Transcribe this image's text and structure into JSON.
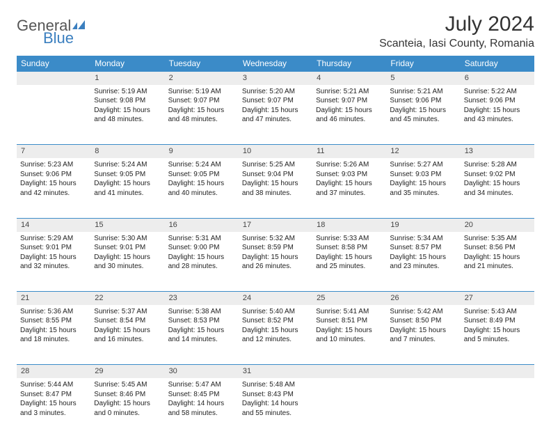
{
  "logo": {
    "part1": "General",
    "part2": "Blue"
  },
  "title": "July 2024",
  "location": "Scanteia, Iasi County, Romania",
  "colors": {
    "header_bg": "#3b8bc8",
    "header_text": "#ffffff",
    "daynum_bg": "#ededed",
    "border": "#3b8bc8",
    "logo_gray": "#555555",
    "logo_blue": "#3b7fbf"
  },
  "daysOfWeek": [
    "Sunday",
    "Monday",
    "Tuesday",
    "Wednesday",
    "Thursday",
    "Friday",
    "Saturday"
  ],
  "weeks": [
    {
      "nums": [
        "",
        "1",
        "2",
        "3",
        "4",
        "5",
        "6"
      ],
      "cells": [
        null,
        {
          "sunrise": "Sunrise: 5:19 AM",
          "sunset": "Sunset: 9:08 PM",
          "d1": "Daylight: 15 hours",
          "d2": "and 48 minutes."
        },
        {
          "sunrise": "Sunrise: 5:19 AM",
          "sunset": "Sunset: 9:07 PM",
          "d1": "Daylight: 15 hours",
          "d2": "and 48 minutes."
        },
        {
          "sunrise": "Sunrise: 5:20 AM",
          "sunset": "Sunset: 9:07 PM",
          "d1": "Daylight: 15 hours",
          "d2": "and 47 minutes."
        },
        {
          "sunrise": "Sunrise: 5:21 AM",
          "sunset": "Sunset: 9:07 PM",
          "d1": "Daylight: 15 hours",
          "d2": "and 46 minutes."
        },
        {
          "sunrise": "Sunrise: 5:21 AM",
          "sunset": "Sunset: 9:06 PM",
          "d1": "Daylight: 15 hours",
          "d2": "and 45 minutes."
        },
        {
          "sunrise": "Sunrise: 5:22 AM",
          "sunset": "Sunset: 9:06 PM",
          "d1": "Daylight: 15 hours",
          "d2": "and 43 minutes."
        }
      ]
    },
    {
      "nums": [
        "7",
        "8",
        "9",
        "10",
        "11",
        "12",
        "13"
      ],
      "cells": [
        {
          "sunrise": "Sunrise: 5:23 AM",
          "sunset": "Sunset: 9:06 PM",
          "d1": "Daylight: 15 hours",
          "d2": "and 42 minutes."
        },
        {
          "sunrise": "Sunrise: 5:24 AM",
          "sunset": "Sunset: 9:05 PM",
          "d1": "Daylight: 15 hours",
          "d2": "and 41 minutes."
        },
        {
          "sunrise": "Sunrise: 5:24 AM",
          "sunset": "Sunset: 9:05 PM",
          "d1": "Daylight: 15 hours",
          "d2": "and 40 minutes."
        },
        {
          "sunrise": "Sunrise: 5:25 AM",
          "sunset": "Sunset: 9:04 PM",
          "d1": "Daylight: 15 hours",
          "d2": "and 38 minutes."
        },
        {
          "sunrise": "Sunrise: 5:26 AM",
          "sunset": "Sunset: 9:03 PM",
          "d1": "Daylight: 15 hours",
          "d2": "and 37 minutes."
        },
        {
          "sunrise": "Sunrise: 5:27 AM",
          "sunset": "Sunset: 9:03 PM",
          "d1": "Daylight: 15 hours",
          "d2": "and 35 minutes."
        },
        {
          "sunrise": "Sunrise: 5:28 AM",
          "sunset": "Sunset: 9:02 PM",
          "d1": "Daylight: 15 hours",
          "d2": "and 34 minutes."
        }
      ]
    },
    {
      "nums": [
        "14",
        "15",
        "16",
        "17",
        "18",
        "19",
        "20"
      ],
      "cells": [
        {
          "sunrise": "Sunrise: 5:29 AM",
          "sunset": "Sunset: 9:01 PM",
          "d1": "Daylight: 15 hours",
          "d2": "and 32 minutes."
        },
        {
          "sunrise": "Sunrise: 5:30 AM",
          "sunset": "Sunset: 9:01 PM",
          "d1": "Daylight: 15 hours",
          "d2": "and 30 minutes."
        },
        {
          "sunrise": "Sunrise: 5:31 AM",
          "sunset": "Sunset: 9:00 PM",
          "d1": "Daylight: 15 hours",
          "d2": "and 28 minutes."
        },
        {
          "sunrise": "Sunrise: 5:32 AM",
          "sunset": "Sunset: 8:59 PM",
          "d1": "Daylight: 15 hours",
          "d2": "and 26 minutes."
        },
        {
          "sunrise": "Sunrise: 5:33 AM",
          "sunset": "Sunset: 8:58 PM",
          "d1": "Daylight: 15 hours",
          "d2": "and 25 minutes."
        },
        {
          "sunrise": "Sunrise: 5:34 AM",
          "sunset": "Sunset: 8:57 PM",
          "d1": "Daylight: 15 hours",
          "d2": "and 23 minutes."
        },
        {
          "sunrise": "Sunrise: 5:35 AM",
          "sunset": "Sunset: 8:56 PM",
          "d1": "Daylight: 15 hours",
          "d2": "and 21 minutes."
        }
      ]
    },
    {
      "nums": [
        "21",
        "22",
        "23",
        "24",
        "25",
        "26",
        "27"
      ],
      "cells": [
        {
          "sunrise": "Sunrise: 5:36 AM",
          "sunset": "Sunset: 8:55 PM",
          "d1": "Daylight: 15 hours",
          "d2": "and 18 minutes."
        },
        {
          "sunrise": "Sunrise: 5:37 AM",
          "sunset": "Sunset: 8:54 PM",
          "d1": "Daylight: 15 hours",
          "d2": "and 16 minutes."
        },
        {
          "sunrise": "Sunrise: 5:38 AM",
          "sunset": "Sunset: 8:53 PM",
          "d1": "Daylight: 15 hours",
          "d2": "and 14 minutes."
        },
        {
          "sunrise": "Sunrise: 5:40 AM",
          "sunset": "Sunset: 8:52 PM",
          "d1": "Daylight: 15 hours",
          "d2": "and 12 minutes."
        },
        {
          "sunrise": "Sunrise: 5:41 AM",
          "sunset": "Sunset: 8:51 PM",
          "d1": "Daylight: 15 hours",
          "d2": "and 10 minutes."
        },
        {
          "sunrise": "Sunrise: 5:42 AM",
          "sunset": "Sunset: 8:50 PM",
          "d1": "Daylight: 15 hours",
          "d2": "and 7 minutes."
        },
        {
          "sunrise": "Sunrise: 5:43 AM",
          "sunset": "Sunset: 8:49 PM",
          "d1": "Daylight: 15 hours",
          "d2": "and 5 minutes."
        }
      ]
    },
    {
      "nums": [
        "28",
        "29",
        "30",
        "31",
        "",
        "",
        ""
      ],
      "cells": [
        {
          "sunrise": "Sunrise: 5:44 AM",
          "sunset": "Sunset: 8:47 PM",
          "d1": "Daylight: 15 hours",
          "d2": "and 3 minutes."
        },
        {
          "sunrise": "Sunrise: 5:45 AM",
          "sunset": "Sunset: 8:46 PM",
          "d1": "Daylight: 15 hours",
          "d2": "and 0 minutes."
        },
        {
          "sunrise": "Sunrise: 5:47 AM",
          "sunset": "Sunset: 8:45 PM",
          "d1": "Daylight: 14 hours",
          "d2": "and 58 minutes."
        },
        {
          "sunrise": "Sunrise: 5:48 AM",
          "sunset": "Sunset: 8:43 PM",
          "d1": "Daylight: 14 hours",
          "d2": "and 55 minutes."
        },
        null,
        null,
        null
      ]
    }
  ]
}
